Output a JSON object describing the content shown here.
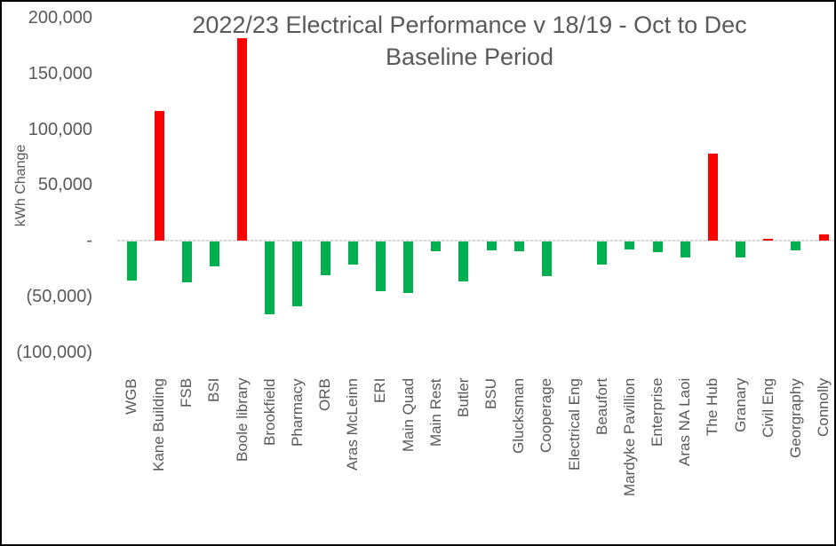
{
  "chart": {
    "title_line1": "2022/23 Electrical Performance v 18/19 - Oct to Dec",
    "title_line2": "Baseline Period",
    "ylabel": "kWh Change"
  },
  "chart_data": {
    "type": "bar",
    "title": "2022/23 Electrical Performance v 18/19 - Oct to Dec Baseline Period",
    "xlabel": "",
    "ylabel": "kWh Change",
    "categories": [
      "WGB",
      "Kane Building",
      "FSB",
      "BSI",
      "Boole library",
      "Brookfield",
      "Pharmacy",
      "ORB",
      "Aras McLeinn",
      "ERI",
      "Main Quad",
      "Main Rest",
      "Butler",
      "BSU",
      "Glucksman",
      "Cooperage",
      "Electrical Eng",
      "Beaufort",
      "Mardyke Pavillion",
      "Enterprise",
      "Aras NA Laoi",
      "The Hub",
      "Granary",
      "Civil Eng",
      "Georgraphy",
      "Connolly"
    ],
    "values": [
      -35000,
      116000,
      -37000,
      -22000,
      182000,
      -65000,
      -58000,
      -30000,
      -21000,
      -45000,
      -46000,
      -9000,
      -36000,
      -8000,
      -9000,
      -31000,
      0,
      -21000,
      -7000,
      -9500,
      -14000,
      78000,
      -14000,
      1500,
      -8000,
      5500
    ],
    "ylim": [
      -100000,
      200000
    ],
    "y_ticks": [
      {
        "value": 200000,
        "label": "200,000"
      },
      {
        "value": 150000,
        "label": "150,000"
      },
      {
        "value": 100000,
        "label": "100,000"
      },
      {
        "value": 50000,
        "label": "50,000"
      },
      {
        "value": 0,
        "label": "-"
      },
      {
        "value": -50000,
        "label": "(50,000)"
      },
      {
        "value": -100000,
        "label": "(100,000)"
      }
    ],
    "grid": false,
    "legend": "none",
    "positive_color": "#ff0000",
    "negative_color": "#00b050",
    "text_color": "#595959",
    "axis_line_color": "#d9d9d9"
  }
}
